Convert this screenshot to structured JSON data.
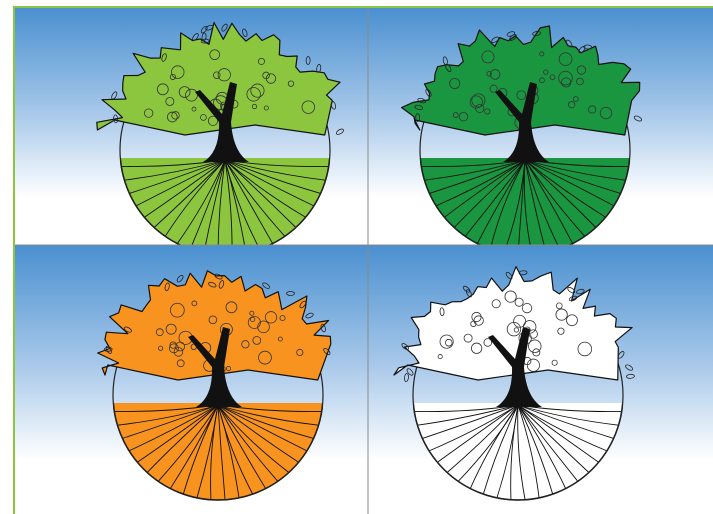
{
  "panels": [
    {
      "color": "#8cc63f"
    },
    {
      "color": "#1a9641"
    },
    {
      "color": "#f7931e"
    },
    {
      "color": "#ffffff"
    }
  ]
}
